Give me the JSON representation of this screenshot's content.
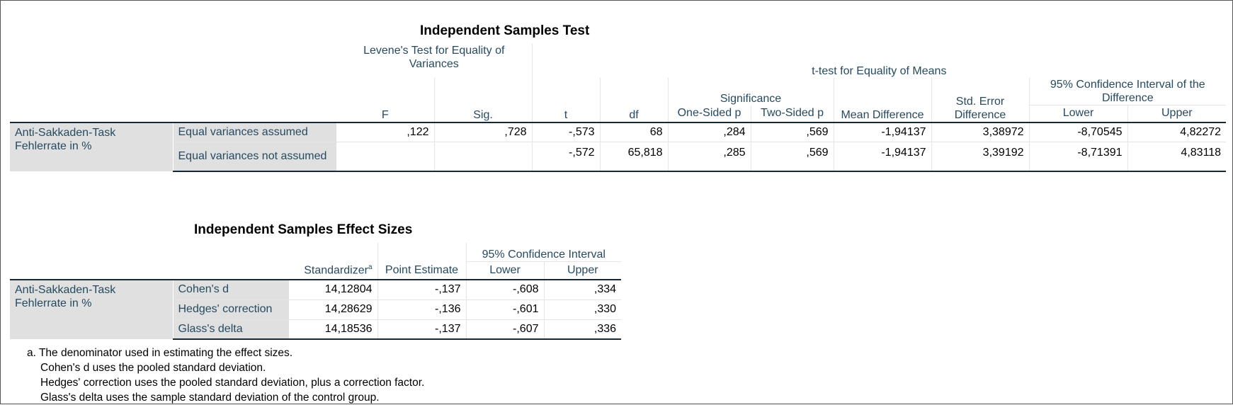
{
  "t1": {
    "title": "Independent Samples Test",
    "levene": "Levene's Test for Equality of Variances",
    "ttest": "t-test for Equality of Means",
    "significance": "Significance",
    "ci": "95% Confidence Interval of the Difference",
    "cols": {
      "F": "F",
      "Sig": "Sig.",
      "t": "t",
      "df": "df",
      "one": "One-Sided p",
      "two": "Two-Sided p",
      "md": "Mean Difference",
      "se": "Std. Error Difference",
      "lower": "Lower",
      "upper": "Upper"
    },
    "var": "Anti-Sakkaden-Task Fehlerrate in %",
    "rows": [
      {
        "label": "Equal variances assumed",
        "F": ",122",
        "Sig": ",728",
        "t": "-,573",
        "df": "68",
        "one": ",284",
        "two": ",569",
        "md": "-1,94137",
        "se": "3,38972",
        "lower": "-8,70545",
        "upper": "4,82272"
      },
      {
        "label": "Equal variances not assumed",
        "F": "",
        "Sig": "",
        "t": "-,572",
        "df": "65,818",
        "one": ",285",
        "two": ",569",
        "md": "-1,94137",
        "se": "3,39192",
        "lower": "-8,71391",
        "upper": "4,83118"
      }
    ]
  },
  "t2": {
    "title": "Independent Samples Effect Sizes",
    "cols": {
      "std": "Standardizer",
      "std_sup": "a",
      "pe": "Point Estimate",
      "ci": "95% Confidence Interval",
      "lower": "Lower",
      "upper": "Upper"
    },
    "var": "Anti-Sakkaden-Task Fehlerrate in %",
    "rows": [
      {
        "label": "Cohen's d",
        "std": "14,12804",
        "pe": "-,137",
        "lower": "-,608",
        "upper": ",334"
      },
      {
        "label": "Hedges' correction",
        "std": "14,28629",
        "pe": "-,136",
        "lower": "-,601",
        "upper": ",330"
      },
      {
        "label": "Glass's delta",
        "std": "14,18536",
        "pe": "-,137",
        "lower": "-,607",
        "upper": ",336"
      }
    ]
  },
  "footnote": [
    "a. The denominator used in estimating the effect sizes.",
    "Cohen's d uses the pooled standard deviation.",
    "Hedges' correction uses the pooled standard deviation, plus a correction factor.",
    "Glass's delta uses the sample standard deviation of the control group."
  ]
}
